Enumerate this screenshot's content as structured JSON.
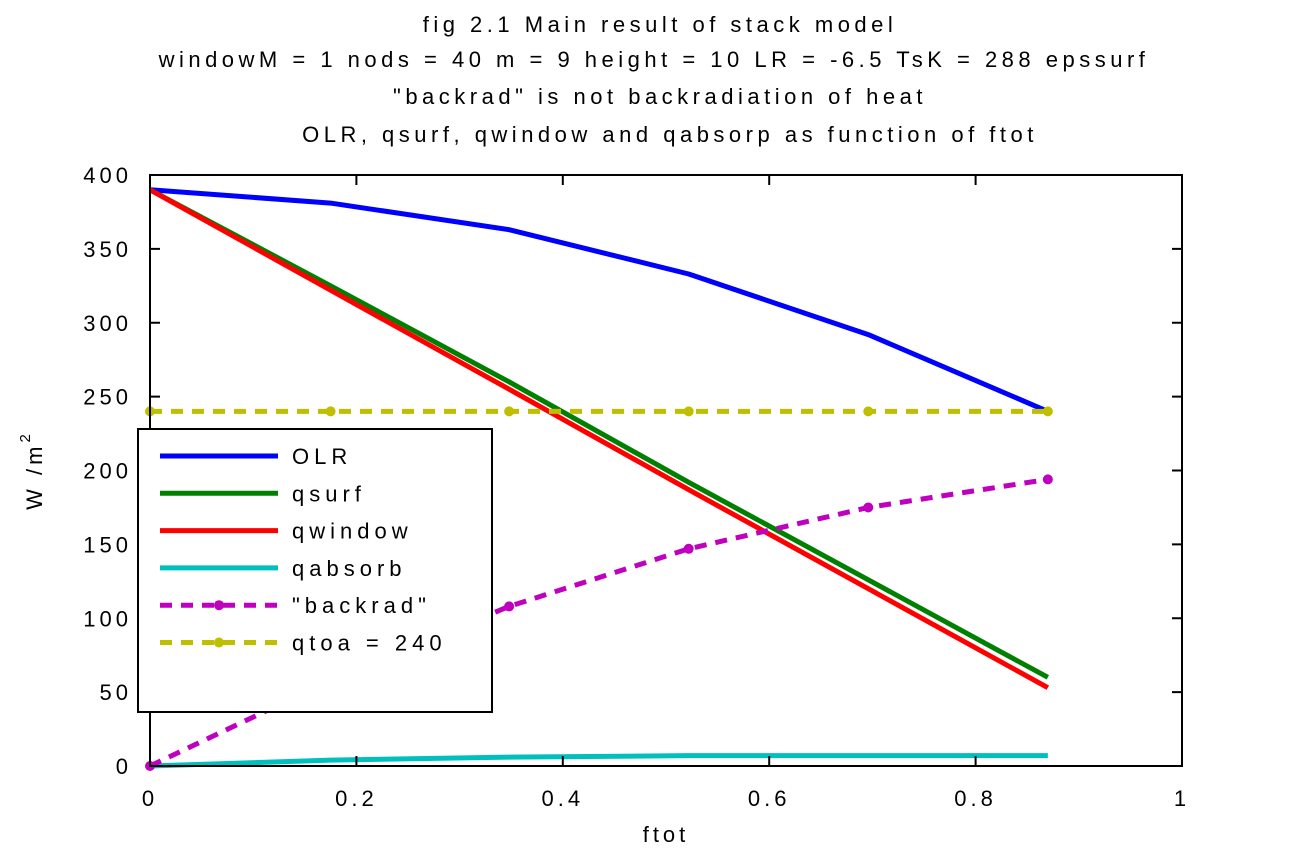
{
  "chart_data": {
    "type": "line",
    "title_lines": [
      "fig 2.1    Main result of stack model",
      "windowM = 1 nods = 40 m = 9 height = 10  LR = -6.5  TsK = 288  epssurf",
      "\"backrad\" is not backradiation of heat",
      "OLR, qsurf, qwindow and qabsorp as function of ftot"
    ],
    "xlabel": "ftot",
    "ylabel": "W /m",
    "ylabel_sup": "2",
    "xlim": [
      0,
      1
    ],
    "ylim": [
      0,
      400
    ],
    "xticks": [
      0,
      0.2,
      0.4,
      0.6,
      0.8,
      1
    ],
    "xtick_labels": [
      "0",
      "0.2",
      "0.4",
      "0.6",
      "0.8",
      "1"
    ],
    "yticks": [
      0,
      50,
      100,
      150,
      200,
      250,
      300,
      350,
      400
    ],
    "ytick_labels": [
      "0",
      "50",
      "100",
      "150",
      "200",
      "250",
      "300",
      "350",
      "400"
    ],
    "grid": false,
    "legend_position": "lower-left",
    "x": [
      0,
      0.175,
      0.348,
      0.522,
      0.696,
      0.87
    ],
    "series": [
      {
        "name": "OLR",
        "color": "#0000ff",
        "style": "solid",
        "markers": false,
        "values": [
          390,
          381,
          363,
          333,
          292,
          240
        ]
      },
      {
        "name": "qsurf",
        "color": "#008000",
        "style": "solid",
        "markers": false,
        "values": [
          390,
          325,
          260,
          192,
          126,
          60
        ]
      },
      {
        "name": "qwindow",
        "color": "#ff0000",
        "style": "solid",
        "markers": false,
        "values": [
          390,
          322,
          255,
          187,
          120,
          53
        ]
      },
      {
        "name": "qabsorb",
        "color": "#00bfbf",
        "style": "solid",
        "markers": false,
        "values": [
          0,
          4,
          6,
          7,
          7,
          7
        ]
      },
      {
        "name": "\"backrad\"",
        "color": "#bf00bf",
        "style": "dashed",
        "markers": true,
        "values": [
          0,
          58,
          108,
          147,
          175,
          194
        ]
      },
      {
        "name": "qtoa = 240",
        "color": "#bfbf00",
        "style": "dashed",
        "markers": true,
        "values": [
          240,
          240,
          240,
          240,
          240,
          240
        ]
      }
    ]
  }
}
